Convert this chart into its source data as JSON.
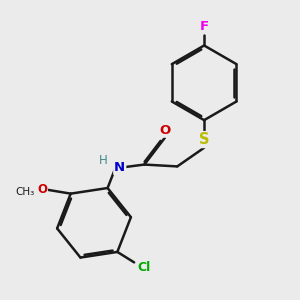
{
  "bg_color": "#ebebeb",
  "bond_color": "#1a1a1a",
  "bond_width": 1.8,
  "dbo": 0.055,
  "atom_colors": {
    "F": "#ee00ee",
    "S": "#bbbb00",
    "N": "#0000cc",
    "O": "#cc0000",
    "Cl": "#00aa00",
    "H": "#448888"
  },
  "font_size": 9.5,
  "font_size_cl": 9.0
}
